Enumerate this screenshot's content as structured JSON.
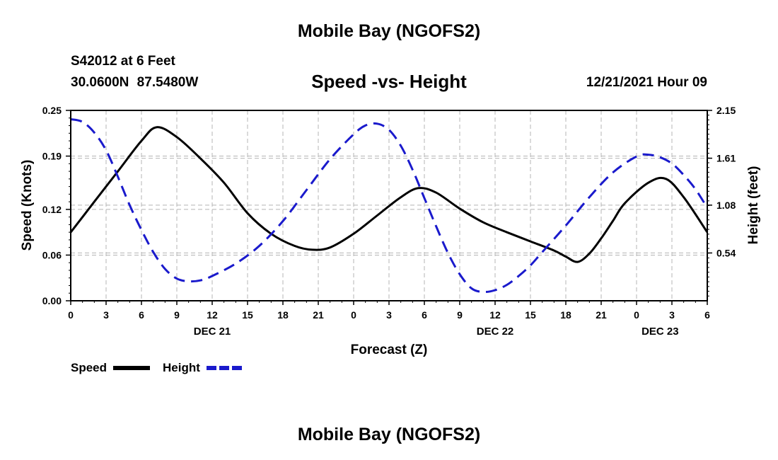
{
  "header": {
    "title": "Mobile Bay (NGOFS2)",
    "station": "S42012 at 6 Feet",
    "coords": "30.0600N  87.5480W",
    "subtitle": "Speed -vs- Height",
    "datetime": "12/21/2021 Hour 09"
  },
  "footer": {
    "title": "Mobile Bay (NGOFS2)"
  },
  "legend": {
    "speed_label": "Speed",
    "height_label": "Height"
  },
  "colors": {
    "speed": "#000000",
    "height": "#1a1acc",
    "grid": "#b4b4b4"
  },
  "chart_data": {
    "type": "line",
    "title": "Speed -vs- Height",
    "xlabel": "Forecast (Z)",
    "ylabel": "Speed (Knots)",
    "y2label": "Height (feet)",
    "x_range_hours": [
      0,
      54
    ],
    "x_tick_labels": [
      "0",
      "3",
      "6",
      "9",
      "12",
      "15",
      "18",
      "21",
      "0",
      "3",
      "6",
      "9",
      "12",
      "15",
      "18",
      "21",
      "0",
      "3",
      "6"
    ],
    "day_labels": [
      {
        "label": "DEC 21",
        "hour": 12
      },
      {
        "label": "DEC 22",
        "hour": 36
      },
      {
        "label": "DEC 23",
        "hour": 50
      }
    ],
    "ylim": [
      0,
      0.25
    ],
    "y_ticks": [
      "0.00",
      "0.06",
      "0.12",
      "0.19",
      "0.25"
    ],
    "y2lim": [
      0,
      2.15
    ],
    "y2_ticks": [
      "0.54",
      "1.08",
      "1.61",
      "2.15"
    ],
    "grid": true,
    "legend_position": "bottom-left",
    "series": [
      {
        "name": "Speed",
        "axis": "left",
        "style": "solid",
        "x": [
          0,
          2,
          4,
          6,
          7.3,
          9,
          11,
          13,
          15,
          17,
          19,
          20.5,
          22,
          24,
          26,
          28,
          29.5,
          31,
          33,
          35,
          37,
          39,
          41,
          42,
          43,
          44,
          45,
          46,
          47,
          49,
          50.5,
          52,
          54
        ],
        "y": [
          0.09,
          0.13,
          0.17,
          0.21,
          0.228,
          0.215,
          0.187,
          0.155,
          0.115,
          0.088,
          0.072,
          0.067,
          0.07,
          0.088,
          0.112,
          0.136,
          0.148,
          0.142,
          0.121,
          0.103,
          0.09,
          0.078,
          0.066,
          0.058,
          0.051,
          0.062,
          0.082,
          0.105,
          0.128,
          0.155,
          0.16,
          0.136,
          0.09
        ]
      },
      {
        "name": "Height",
        "axis": "right",
        "style": "dashed",
        "x": [
          0,
          1,
          2,
          3,
          4,
          5,
          6,
          7,
          8,
          9,
          10,
          11,
          12,
          14,
          16,
          18,
          20,
          22,
          24,
          25,
          26,
          27,
          28,
          29,
          30,
          31,
          32,
          33,
          34,
          35,
          36,
          37,
          38,
          39,
          40,
          42,
          44,
          46,
          48,
          49,
          50,
          51,
          52,
          53,
          54
        ],
        "y": [
          2.05,
          2.02,
          1.9,
          1.7,
          1.4,
          1.08,
          0.8,
          0.55,
          0.36,
          0.25,
          0.22,
          0.23,
          0.28,
          0.42,
          0.62,
          0.9,
          1.25,
          1.6,
          1.88,
          1.98,
          2.0,
          1.93,
          1.75,
          1.48,
          1.16,
          0.84,
          0.54,
          0.3,
          0.14,
          0.1,
          0.12,
          0.18,
          0.28,
          0.4,
          0.55,
          0.85,
          1.17,
          1.45,
          1.63,
          1.65,
          1.62,
          1.55,
          1.42,
          1.26,
          1.05
        ]
      }
    ]
  }
}
